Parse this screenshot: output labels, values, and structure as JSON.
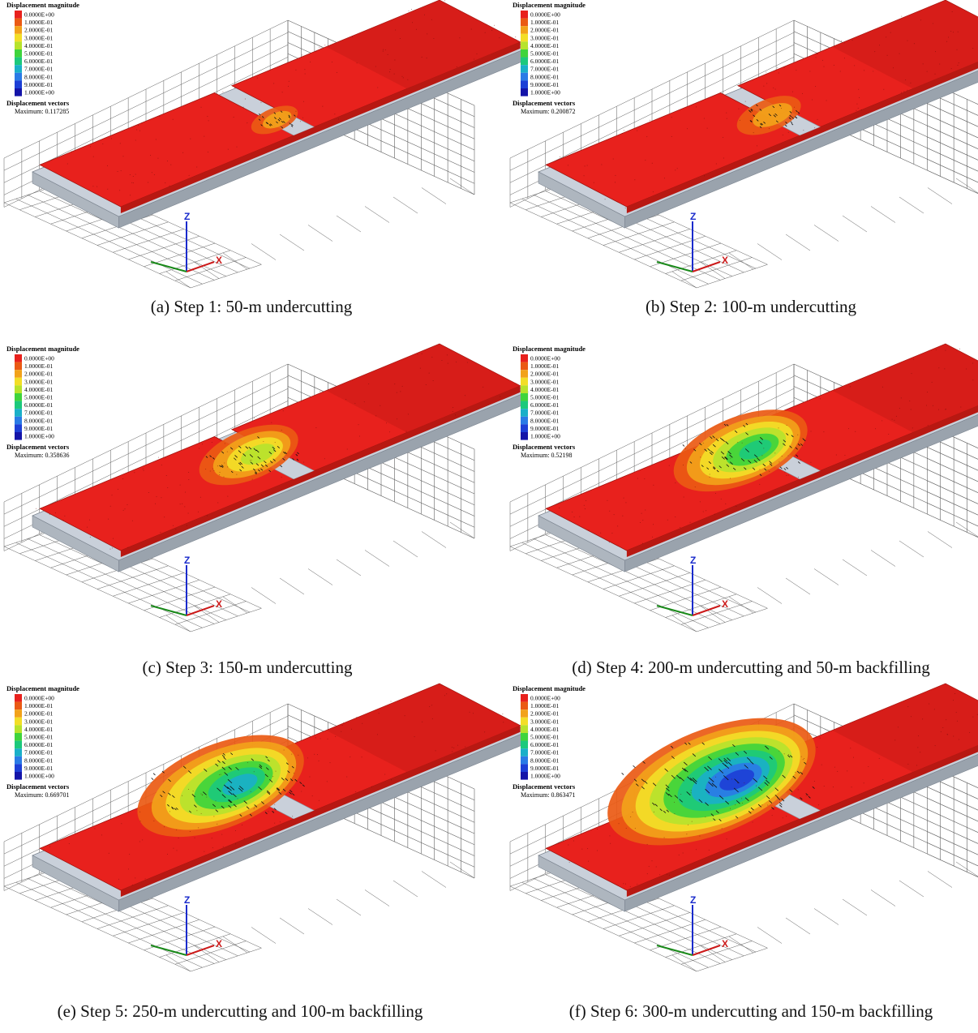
{
  "legend": {
    "title": "Displacement magnitude",
    "levels": [
      "0.0000E+00",
      "1.0000E-01",
      "2.0000E-01",
      "3.0000E-01",
      "4.0000E-01",
      "5.0000E-01",
      "6.0000E-01",
      "7.0000E-01",
      "8.0000E-01",
      "9.0000E-01",
      "1.0000E+00"
    ],
    "colors": [
      "#e8211d",
      "#ea5a14",
      "#f2a21a",
      "#f3de27",
      "#b7e32c",
      "#3fd43c",
      "#1cc97c",
      "#1ab0c8",
      "#2a7be6",
      "#1d3fd6",
      "#1414a8"
    ],
    "vectors_title": "Displacement vectors",
    "maximum_label": "Maximum:"
  },
  "axes_labels": {
    "z": "Z",
    "x": "X"
  },
  "colors": {
    "rock": "#e8211d",
    "rock_shade": "#c91c16",
    "base": "#c9d0da",
    "base_dark": "#9aa3ad",
    "grid": "#5e5e5e",
    "zaxis": "#1a2bcc",
    "xaxis": "#cc1a1a",
    "yaxis": "#1a8a1a"
  },
  "panels": [
    {
      "caption": "(a) Step 1: 50-m undercutting",
      "maximum": "0.117285",
      "undercut_m": 50,
      "backfill_m": 0,
      "peak_level": 0.12
    },
    {
      "caption": "(b) Step 2: 100-m undercutting",
      "maximum": "0.200872",
      "undercut_m": 100,
      "backfill_m": 0,
      "peak_level": 0.2
    },
    {
      "caption": "(c) Step 3: 150-m undercutting",
      "maximum": "0.358636",
      "undercut_m": 150,
      "backfill_m": 0,
      "peak_level": 0.36
    },
    {
      "caption": "(d) Step 4: 200-m undercutting and 50-m backfilling",
      "maximum": "0.52198",
      "undercut_m": 200,
      "backfill_m": 50,
      "peak_level": 0.52
    },
    {
      "caption": "(e) Step 5: 250-m undercutting and 100-m backfilling",
      "maximum": "0.669701",
      "undercut_m": 250,
      "backfill_m": 100,
      "peak_level": 0.67
    },
    {
      "caption": "(f) Step 6: 300-m undercutting and 150-m backfilling",
      "maximum": "0.863471",
      "undercut_m": 300,
      "backfill_m": 150,
      "peak_level": 0.86
    }
  ]
}
